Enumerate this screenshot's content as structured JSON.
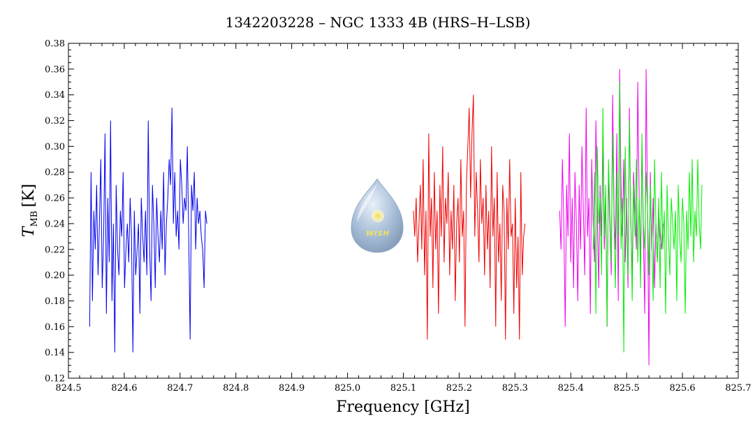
{
  "chart_data": {
    "type": "line",
    "title": "1342203228 – NGC 1333 4B (HRS–H–LSB)",
    "xlabel": "Frequency [GHz]",
    "ylabel_main": "T",
    "ylabel_sub": "MB",
    "ylabel_unit": "[K]",
    "xlim": [
      824.5,
      825.7
    ],
    "ylim": [
      0.12,
      0.38
    ],
    "x_ticks": [
      "824.5",
      "824.6",
      "824.7",
      "824.8",
      "824.9",
      "825.0",
      "825.1",
      "825.2",
      "825.3",
      "825.4",
      "825.5",
      "825.6",
      "825.7"
    ],
    "y_ticks": [
      "0.12",
      "0.14",
      "0.16",
      "0.18",
      "0.20",
      "0.22",
      "0.24",
      "0.26",
      "0.28",
      "0.30",
      "0.32",
      "0.34",
      "0.36",
      "0.38"
    ],
    "grid": false,
    "logo_text": "WISH",
    "series": [
      {
        "color": "#0000ee",
        "x_start": 824.538,
        "x_step": 0.0025,
        "values": [
          0.16,
          0.28,
          0.18,
          0.25,
          0.22,
          0.27,
          0.2,
          0.24,
          0.29,
          0.19,
          0.23,
          0.31,
          0.17,
          0.26,
          0.21,
          0.32,
          0.18,
          0.24,
          0.14,
          0.27,
          0.22,
          0.2,
          0.25,
          0.23,
          0.28,
          0.19,
          0.22,
          0.24,
          0.21,
          0.26,
          0.23,
          0.14,
          0.25,
          0.2,
          0.22,
          0.24,
          0.17,
          0.26,
          0.23,
          0.21,
          0.25,
          0.2,
          0.32,
          0.22,
          0.18,
          0.27,
          0.24,
          0.19,
          0.26,
          0.23,
          0.21,
          0.25,
          0.22,
          0.28,
          0.2,
          0.24,
          0.26,
          0.29,
          0.27,
          0.33,
          0.24,
          0.28,
          0.23,
          0.25,
          0.22,
          0.29,
          0.27,
          0.24,
          0.26,
          0.25,
          0.3,
          0.23,
          0.15,
          0.27,
          0.25,
          0.28,
          0.22,
          0.26,
          0.24,
          0.25,
          0.23,
          0.22,
          0.19,
          0.25,
          0.24
        ]
      },
      {
        "color": "#ee0000",
        "x_start": 825.118,
        "x_step": 0.0025,
        "values": [
          0.25,
          0.23,
          0.26,
          0.21,
          0.24,
          0.27,
          0.22,
          0.29,
          0.2,
          0.25,
          0.15,
          0.31,
          0.23,
          0.26,
          0.19,
          0.28,
          0.22,
          0.25,
          0.17,
          0.27,
          0.23,
          0.3,
          0.21,
          0.26,
          0.24,
          0.28,
          0.2,
          0.25,
          0.22,
          0.27,
          0.18,
          0.24,
          0.26,
          0.21,
          0.29,
          0.23,
          0.25,
          0.16,
          0.27,
          0.3,
          0.33,
          0.26,
          0.31,
          0.34,
          0.23,
          0.28,
          0.25,
          0.21,
          0.29,
          0.24,
          0.26,
          0.2,
          0.27,
          0.22,
          0.25,
          0.19,
          0.3,
          0.23,
          0.26,
          0.16,
          0.28,
          0.21,
          0.24,
          0.18,
          0.27,
          0.25,
          0.15,
          0.26,
          0.22,
          0.29,
          0.23,
          0.24,
          0.17,
          0.26,
          0.19,
          0.23,
          0.15,
          0.28,
          0.2,
          0.23,
          0.24
        ]
      },
      {
        "color": "#ee00ee",
        "x_start": 825.38,
        "x_step": 0.0025,
        "values": [
          0.25,
          0.22,
          0.29,
          0.24,
          0.16,
          0.27,
          0.23,
          0.31,
          0.21,
          0.26,
          0.19,
          0.28,
          0.24,
          0.18,
          0.27,
          0.22,
          0.3,
          0.25,
          0.2,
          0.33,
          0.23,
          0.26,
          0.17,
          0.29,
          0.24,
          0.21,
          0.32,
          0.25,
          0.19,
          0.27,
          0.23,
          0.3,
          0.22,
          0.26,
          0.16,
          0.28,
          0.24,
          0.2,
          0.34,
          0.25,
          0.22,
          0.31,
          0.18,
          0.36,
          0.27,
          0.23,
          0.29,
          0.21,
          0.26,
          0.19,
          0.33,
          0.24,
          0.2,
          0.28,
          0.25,
          0.22,
          0.35,
          0.26,
          0.21,
          0.3,
          0.23,
          0.17,
          0.36,
          0.25,
          0.13,
          0.28,
          0.22,
          0.26,
          0.19,
          0.24,
          0.21,
          0.25,
          0.23,
          0.22,
          0.24
        ]
      },
      {
        "color": "#00ee00",
        "x_start": 825.44,
        "x_step": 0.0025,
        "values": [
          0.22,
          0.28,
          0.17,
          0.3,
          0.24,
          0.26,
          0.2,
          0.33,
          0.23,
          0.27,
          0.16,
          0.29,
          0.25,
          0.21,
          0.31,
          0.24,
          0.19,
          0.28,
          0.23,
          0.35,
          0.22,
          0.26,
          0.14,
          0.3,
          0.24,
          0.2,
          0.32,
          0.25,
          0.18,
          0.27,
          0.23,
          0.29,
          0.21,
          0.26,
          0.19,
          0.31,
          0.24,
          0.22,
          0.28,
          0.25,
          0.2,
          0.27,
          0.23,
          0.18,
          0.29,
          0.24,
          0.21,
          0.26,
          0.19,
          0.28,
          0.22,
          0.25,
          0.17,
          0.27,
          0.23,
          0.2,
          0.26,
          0.24,
          0.22,
          0.25,
          0.18,
          0.27,
          0.23,
          0.21,
          0.26,
          0.24,
          0.17,
          0.25,
          0.22,
          0.28,
          0.23,
          0.29,
          0.21,
          0.25,
          0.23,
          0.29,
          0.24,
          0.22,
          0.27
        ]
      }
    ]
  }
}
